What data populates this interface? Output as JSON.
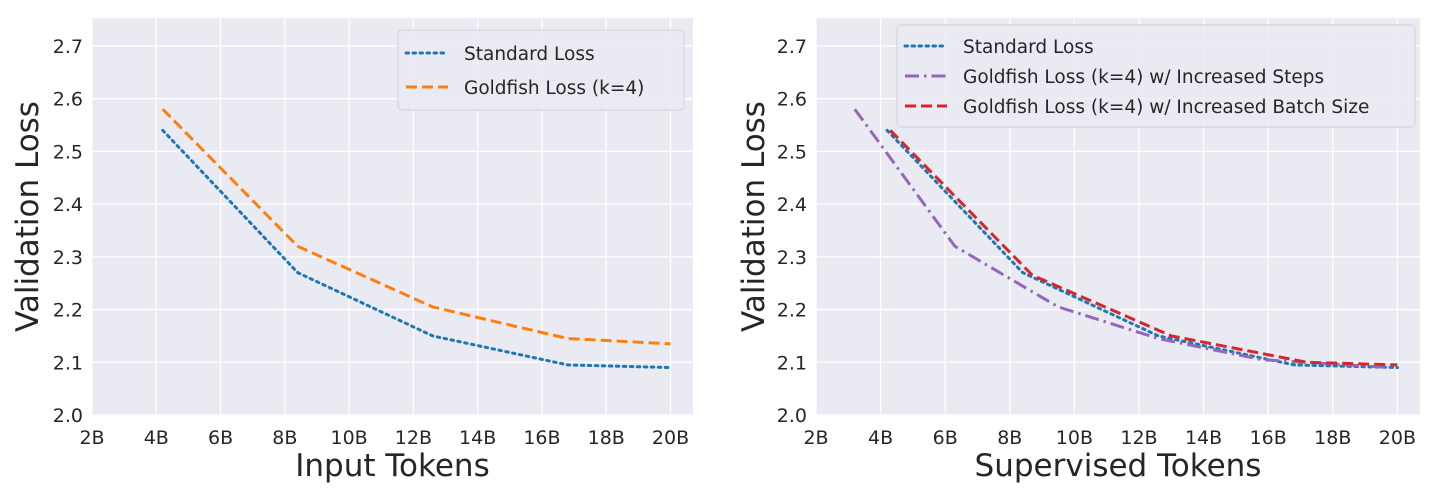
{
  "chart_data": [
    {
      "type": "line",
      "xlabel": "Input Tokens",
      "ylabel": "Validation Loss",
      "xlim": [
        2,
        20.7
      ],
      "ylim": [
        2.0,
        2.753
      ],
      "xticks": [
        2,
        4,
        6,
        8,
        10,
        12,
        14,
        16,
        18,
        20
      ],
      "xtick_labels": [
        "2B",
        "4B",
        "6B",
        "8B",
        "10B",
        "12B",
        "14B",
        "16B",
        "18B",
        "20B"
      ],
      "yticks": [
        2.0,
        2.1,
        2.2,
        2.3,
        2.4,
        2.5,
        2.6,
        2.7
      ],
      "ytick_labels": [
        "2.0",
        "2.1",
        "2.2",
        "2.3",
        "2.4",
        "2.5",
        "2.6",
        "2.7"
      ],
      "grid": true,
      "legend": "top-right",
      "series": [
        {
          "name": "Standard Loss",
          "color": "#1f77b4",
          "style": "dotted",
          "x": [
            4.2,
            8.4,
            12.6,
            16.8,
            20.0
          ],
          "y": [
            2.54,
            2.27,
            2.15,
            2.095,
            2.09
          ]
        },
        {
          "name": "Goldfish Loss (k=4)",
          "color": "#ff7f0e",
          "style": "dashed",
          "x": [
            4.2,
            8.4,
            12.6,
            16.8,
            20.0
          ],
          "y": [
            2.58,
            2.32,
            2.205,
            2.145,
            2.135
          ]
        }
      ]
    },
    {
      "type": "line",
      "xlabel": "Supervised Tokens",
      "ylabel": "Validation Loss",
      "xlim": [
        2,
        20.7
      ],
      "ylim": [
        2.0,
        2.753
      ],
      "xticks": [
        2,
        4,
        6,
        8,
        10,
        12,
        14,
        16,
        18,
        20
      ],
      "xtick_labels": [
        "2B",
        "4B",
        "6B",
        "8B",
        "10B",
        "12B",
        "14B",
        "16B",
        "18B",
        "20B"
      ],
      "yticks": [
        2.0,
        2.1,
        2.2,
        2.3,
        2.4,
        2.5,
        2.6,
        2.7
      ],
      "ytick_labels": [
        "2.0",
        "2.1",
        "2.2",
        "2.3",
        "2.4",
        "2.5",
        "2.6",
        "2.7"
      ],
      "grid": true,
      "legend": "top-right",
      "series": [
        {
          "name": "Standard Loss",
          "color": "#1f77b4",
          "style": "dotted",
          "x": [
            4.2,
            8.4,
            12.6,
            16.8,
            20.0
          ],
          "y": [
            2.54,
            2.27,
            2.15,
            2.095,
            2.09
          ]
        },
        {
          "name": "Goldfish Loss (k=4) w/ Increased Steps",
          "color": "#9467bd",
          "style": "dashdot",
          "x": [
            3.2,
            6.3,
            9.5,
            12.6,
            15.8,
            19.8
          ],
          "y": [
            2.58,
            2.32,
            2.205,
            2.145,
            2.105,
            2.09
          ]
        },
        {
          "name": "Goldfish Loss (k=4) w/ Increased Batch Size",
          "color": "#d62728",
          "style": "dashed",
          "x": [
            4.3,
            8.7,
            13.0,
            17.2,
            20.0
          ],
          "y": [
            2.54,
            2.265,
            2.15,
            2.1,
            2.095
          ]
        }
      ]
    }
  ]
}
